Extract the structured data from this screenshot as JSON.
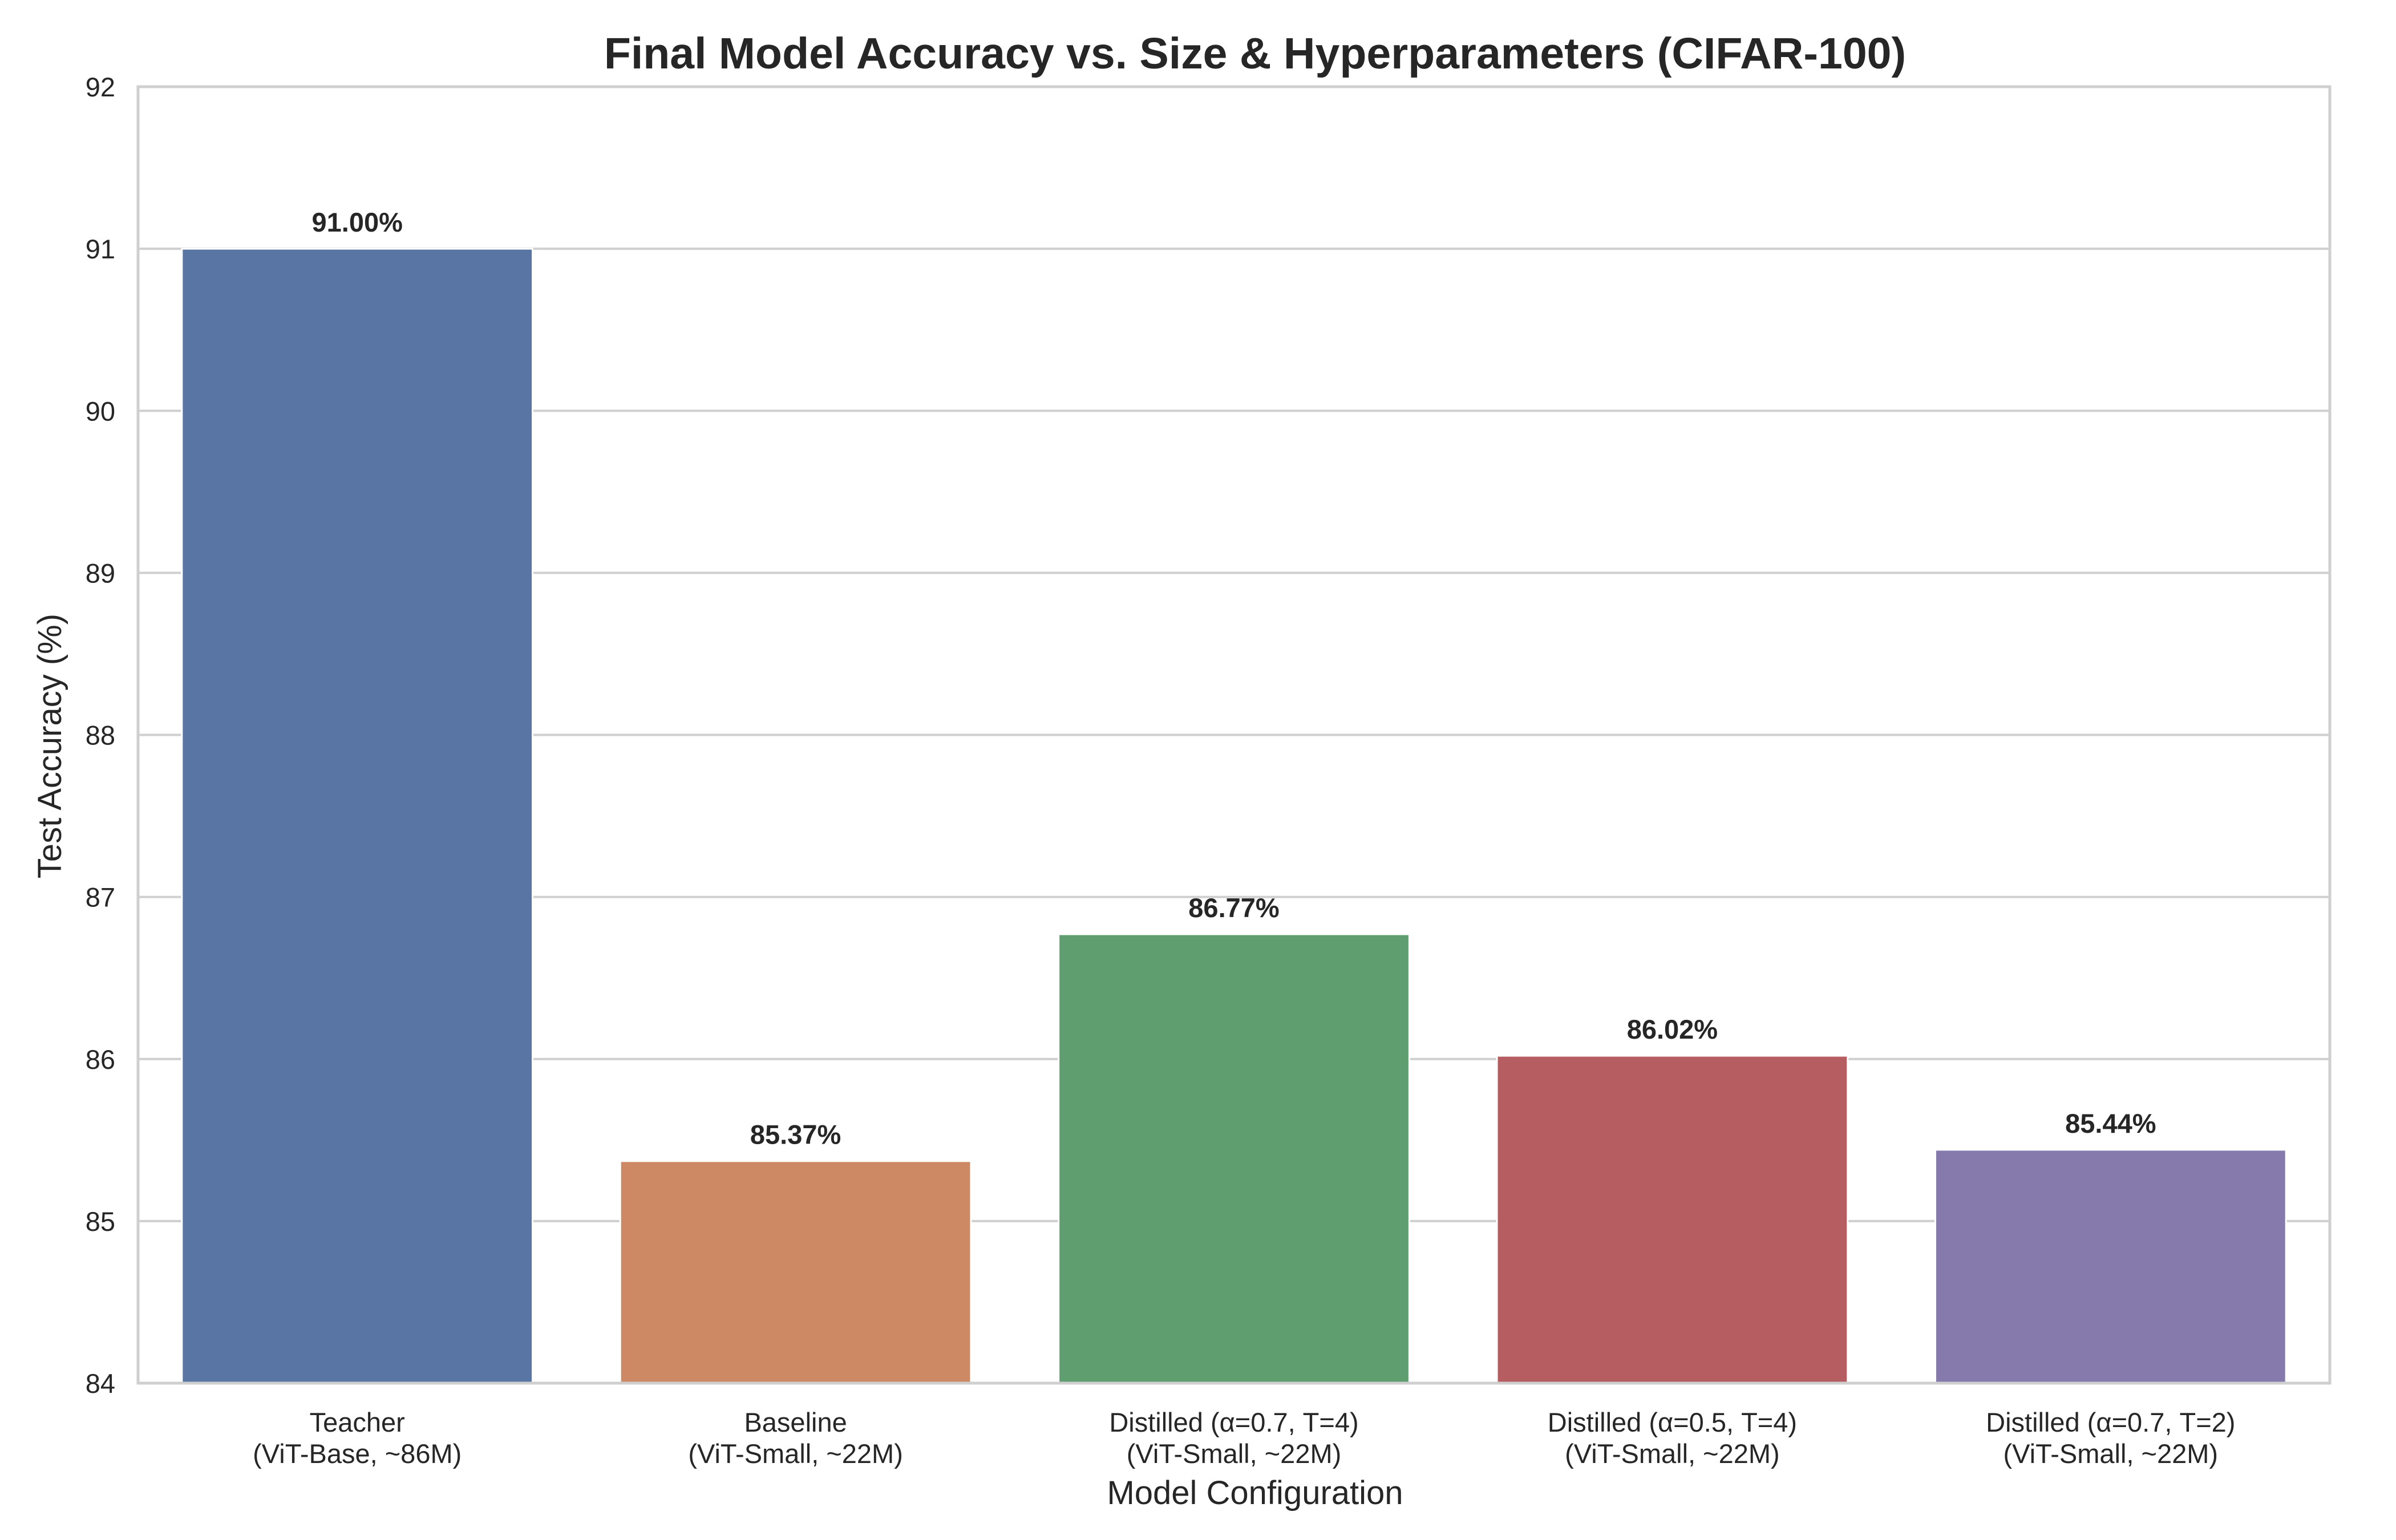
{
  "chart_data": {
    "type": "bar",
    "title": "Final Model Accuracy vs. Size & Hyperparameters (CIFAR-100)",
    "xlabel": "Model Configuration",
    "ylabel": "Test Accuracy (%)",
    "ylim": [
      84,
      92
    ],
    "yticks": [
      "84",
      "85",
      "86",
      "87",
      "88",
      "89",
      "90",
      "91",
      "92"
    ],
    "grid": "horizontal",
    "categories": [
      {
        "line1": "Teacher",
        "line2": "(ViT-Base, ~86M)"
      },
      {
        "line1": "Baseline",
        "line2": "(ViT-Small, ~22M)"
      },
      {
        "line1": "Distilled (α=0.7, T=4)",
        "line2": "(ViT-Small, ~22M)"
      },
      {
        "line1": "Distilled (α=0.5, T=4)",
        "line2": "(ViT-Small, ~22M)"
      },
      {
        "line1": "Distilled (α=0.7, T=2)",
        "line2": "(ViT-Small, ~22M)"
      }
    ],
    "values": [
      91.0,
      85.37,
      86.77,
      86.02,
      85.44
    ],
    "value_labels": [
      "91.00%",
      "85.37%",
      "86.77%",
      "86.02%",
      "85.44%"
    ],
    "colors": [
      "#5975a4",
      "#cc8963",
      "#5f9e6e",
      "#b55d60",
      "#857aab"
    ]
  }
}
